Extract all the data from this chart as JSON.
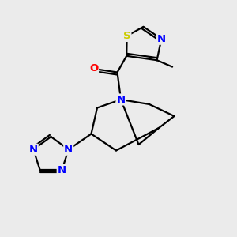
{
  "bg_color": "#ebebeb",
  "bond_color": "#000000",
  "N_color": "#0000ff",
  "O_color": "#ff0000",
  "S_color": "#cccc00",
  "line_width": 1.6,
  "figsize": [
    3.0,
    3.0
  ],
  "dpi": 100,
  "xlim": [
    0,
    10
  ],
  "ylim": [
    0,
    10
  ]
}
